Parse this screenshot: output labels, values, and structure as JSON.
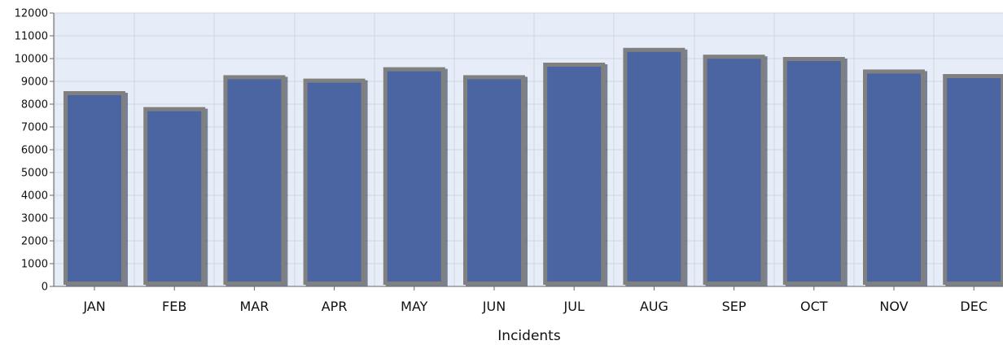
{
  "chart_data": {
    "type": "bar",
    "title": "",
    "xlabel": "Incidents",
    "ylabel": "",
    "categories": [
      "JAN",
      "FEB",
      "MAR",
      "APR",
      "MAY",
      "JUN",
      "JUL",
      "AUG",
      "SEP",
      "OCT",
      "NOV",
      "DEC"
    ],
    "values": [
      8500,
      7800,
      9200,
      9050,
      9550,
      9200,
      9750,
      10400,
      10100,
      10000,
      9450,
      9250
    ],
    "ylim": [
      0,
      12000
    ],
    "yticks": [
      0,
      1000,
      2000,
      3000,
      4000,
      5000,
      6000,
      7000,
      8000,
      9000,
      10000,
      11000,
      12000
    ],
    "grid": true,
    "legend": "none",
    "colors": {
      "bar_fill": "#4a65a2",
      "bar_border": "#808080",
      "plot_background": "#e6edf8",
      "grid": "#cfd6e0"
    }
  }
}
